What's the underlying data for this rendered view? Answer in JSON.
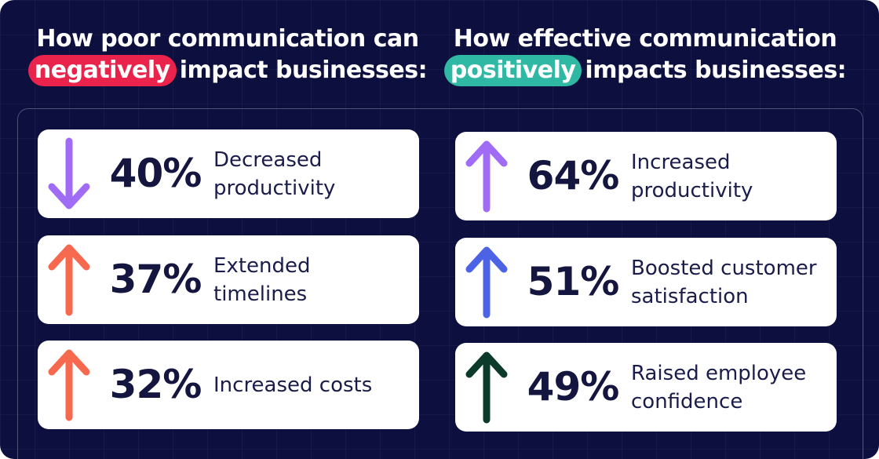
{
  "columns": [
    {
      "heading": {
        "line1": "How poor communication can",
        "highlight": "negatively",
        "rest": "impact businesses:",
        "highlight_color": "#e9234b"
      },
      "items": [
        {
          "percent": "40%",
          "label": [
            "Decreased",
            "productivity"
          ],
          "arrow": "down",
          "color": "#a06cf6"
        },
        {
          "percent": "37%",
          "label": [
            "Extended",
            "timelines"
          ],
          "arrow": "up",
          "color": "#f7694f"
        },
        {
          "percent": "32%",
          "label": [
            "Increased costs"
          ],
          "arrow": "up",
          "color": "#f7694f"
        }
      ]
    },
    {
      "heading": {
        "line1": "How effective communication",
        "highlight": "positively",
        "rest": "impacts businesses:",
        "highlight_color": "#2fb8a4"
      },
      "items": [
        {
          "percent": "64%",
          "label": [
            "Increased",
            "productivity"
          ],
          "arrow": "up",
          "color": "#a06cf6"
        },
        {
          "percent": "51%",
          "label": [
            "Boosted customer",
            "satisfaction"
          ],
          "arrow": "up",
          "color": "#4d63e6"
        },
        {
          "percent": "49%",
          "label": [
            "Raised employee",
            "confidence"
          ],
          "arrow": "up",
          "color": "#0c3a2b"
        }
      ]
    }
  ]
}
